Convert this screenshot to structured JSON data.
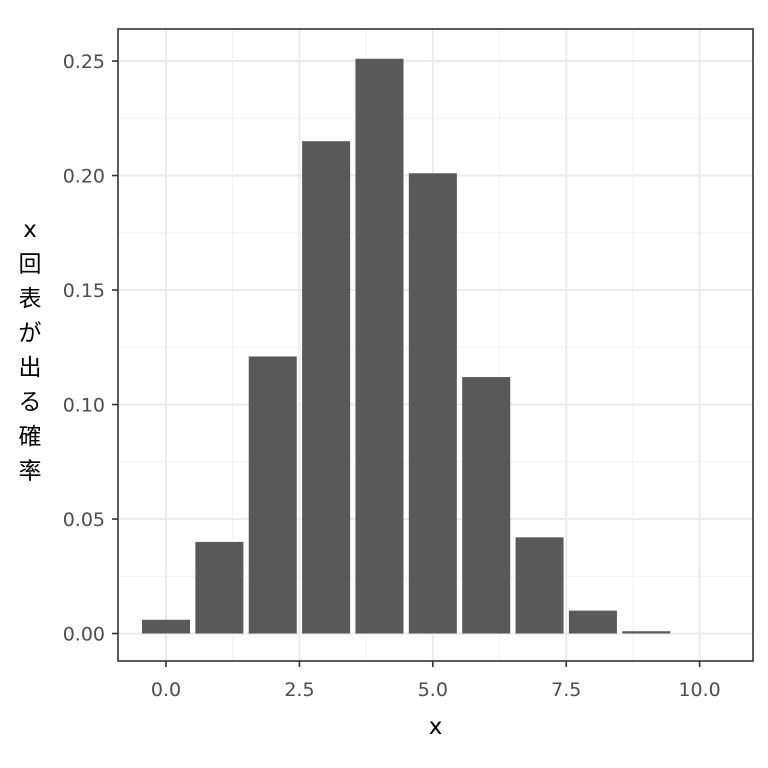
{
  "chart_data": {
    "type": "bar",
    "x": [
      0,
      1,
      2,
      3,
      4,
      5,
      6,
      7,
      8,
      9,
      10
    ],
    "values": [
      0.006,
      0.04,
      0.121,
      0.215,
      0.251,
      0.201,
      0.112,
      0.042,
      0.01,
      0.001,
      0.0
    ],
    "xlabel": "x",
    "ylabel": "x回表が出る確率",
    "ylabel_chars": [
      "x",
      "回",
      "表",
      "が",
      "出",
      "る",
      "確",
      "率"
    ],
    "xlim": [
      -0.9,
      11.0
    ],
    "ylim": [
      -0.012,
      0.264
    ],
    "x_ticks": [
      0,
      2.5,
      5,
      7.5,
      10
    ],
    "x_tick_labels": [
      "0.0",
      "2.5",
      "5.0",
      "7.5",
      "10.0"
    ],
    "y_ticks": [
      0,
      0.05,
      0.1,
      0.15,
      0.2,
      0.25
    ],
    "y_tick_labels": [
      "0.00",
      "0.05",
      "0.10",
      "0.15",
      "0.20",
      "0.25"
    ],
    "grid": true,
    "colors": {
      "bar": "#595959",
      "grid_major": "#ebebeb",
      "grid_minor": "#f2f2f2",
      "panel_border": "#333333",
      "tick_text": "#4d4d4d"
    }
  }
}
